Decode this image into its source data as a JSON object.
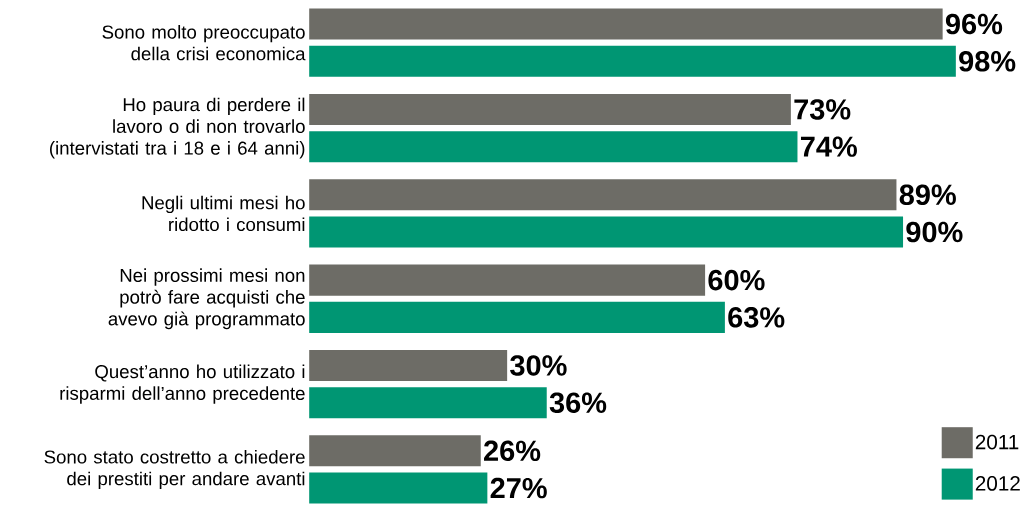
{
  "chart_data": {
    "type": "bar",
    "orientation": "horizontal",
    "categories": [
      "Sono molto preoccupato della crisi economica",
      "Ho paura di perdere il lavoro o di non trovarlo (intervistati tra i 18 e i 64 anni)",
      "Negli ultimi mesi ho ridotto i consumi",
      "Nei prossimi mesi non potrò fare acquisti che avevo già programmato",
      "Quest’anno ho utilizzato i risparmi dell’anno precedente",
      "Sono stato costretto a chiedere dei prestiti per andare avanti"
    ],
    "series": [
      {
        "name": "2011",
        "color": "#6d6c66",
        "values": [
          96,
          73,
          89,
          60,
          30,
          26
        ],
        "value_labels": [
          "96%",
          "73%",
          "89%",
          "60%",
          "30%",
          "26%"
        ]
      },
      {
        "name": "2012",
        "color": "#009673",
        "values": [
          98,
          74,
          90,
          63,
          36,
          27
        ],
        "value_labels": [
          "98%",
          "74%",
          "90%",
          "63%",
          "36%",
          "27%"
        ]
      }
    ],
    "legend": "bottom right"
  }
}
